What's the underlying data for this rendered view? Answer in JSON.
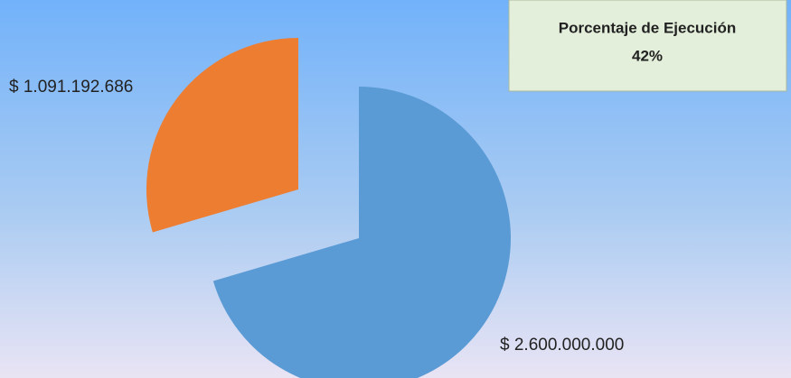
{
  "chart_data": {
    "type": "pie",
    "categories": [
      null,
      null
    ],
    "values": [
      2600000000,
      1091192686
    ],
    "value_labels": [
      "$ 2.600.000.000",
      "$ 1.091.192.686"
    ],
    "colors": [
      "#5b9bd5",
      "#ed7d31"
    ],
    "annotations": [
      "Porcentaje de Ejecución",
      "42%"
    ]
  }
}
